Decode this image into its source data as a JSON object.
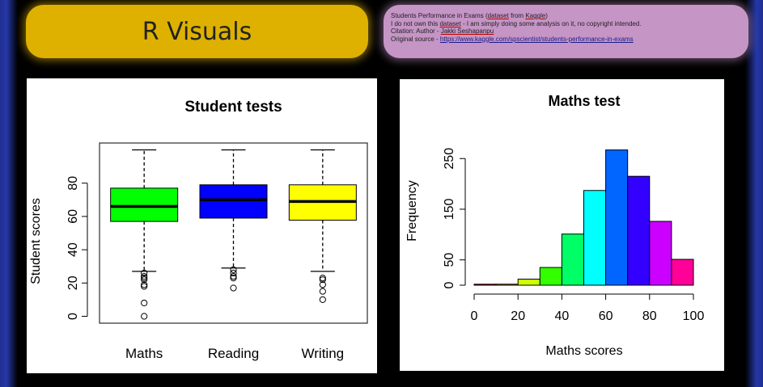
{
  "header": {
    "title": "R Visuals",
    "info": {
      "line1_prefix": "Students Performance in Exams (",
      "line1_link1": "dataset",
      "line1_mid": " from ",
      "line1_link2": "Kaggle",
      "line1_suffix": ")",
      "line2_prefix": "I do not own this ",
      "line2_link": "dataset",
      "line2_suffix": " - I am simply doing some analysis on it, no copyright intended.",
      "line3_prefix": "Citation: Author - ",
      "line3_link": "Jakki Seshapanpu",
      "line4_prefix": "Original source - ",
      "line4_url": "https://www.kaggle.com/spscientist/students-performance-in-exams"
    }
  },
  "chart_data": [
    {
      "type": "boxplot",
      "title": "Student tests",
      "xlabel": "",
      "ylabel": "Student scores",
      "ylim": [
        0,
        100
      ],
      "yticks": [
        0,
        20,
        40,
        60,
        80
      ],
      "categories": [
        "Maths",
        "Reading",
        "Writing"
      ],
      "colors": [
        "#00ff00",
        "#0000ff",
        "#ffff00"
      ],
      "boxes": [
        {
          "name": "Maths",
          "whisker_low": 27,
          "q1": 57,
          "median": 66,
          "q3": 77,
          "whisker_high": 100,
          "outliers": [
            26,
            24,
            23,
            22,
            19,
            18,
            8,
            0
          ]
        },
        {
          "name": "Reading",
          "whisker_low": 29,
          "q1": 59,
          "median": 70,
          "q3": 79,
          "whisker_high": 100,
          "outliers": [
            28,
            26,
            24,
            23,
            17
          ]
        },
        {
          "name": "Writing",
          "whisker_low": 27,
          "q1": 57.75,
          "median": 69,
          "q3": 79,
          "whisker_high": 100,
          "outliers": [
            23,
            22,
            19,
            15,
            10
          ]
        }
      ]
    },
    {
      "type": "bar",
      "subtype": "histogram",
      "title": "Maths test",
      "xlabel": "Maths scores",
      "ylabel": "Frequency",
      "xlim": [
        0,
        100
      ],
      "ylim": [
        0,
        270
      ],
      "xticks": [
        0,
        20,
        40,
        60,
        80,
        100
      ],
      "yticks": [
        0,
        50,
        150,
        250
      ],
      "bins": [
        [
          0,
          10
        ],
        [
          10,
          20
        ],
        [
          20,
          30
        ],
        [
          30,
          40
        ],
        [
          40,
          50
        ],
        [
          50,
          60
        ],
        [
          60,
          70
        ],
        [
          70,
          80
        ],
        [
          80,
          90
        ],
        [
          90,
          100
        ]
      ],
      "values": [
        2,
        2,
        12,
        35,
        101,
        187,
        267,
        215,
        126,
        51
      ],
      "colors": [
        "#ff0000",
        "#ff9900",
        "#ccff00",
        "#33ff00",
        "#00ff66",
        "#00ffff",
        "#0066ff",
        "#3300ff",
        "#cc00ff",
        "#ff0099"
      ]
    }
  ]
}
